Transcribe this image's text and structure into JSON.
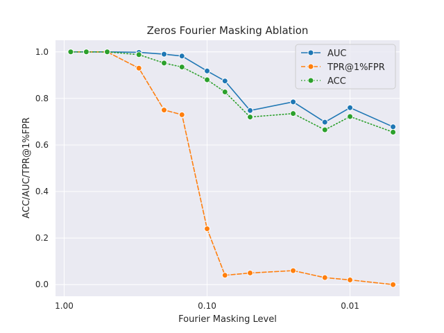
{
  "chart_data": {
    "type": "line",
    "title": "Zeros Fourier Masking Ablation",
    "xlabel": "Fourier Masking Level",
    "ylabel": "ACC/AUC/TPR@1%FPR",
    "x_scale": "log",
    "x_reversed": true,
    "xlim": [
      1.15,
      0.0045
    ],
    "ylim": [
      -0.05,
      1.05
    ],
    "x_ticks": [
      {
        "value": 1.0,
        "label": "1.00"
      },
      {
        "value": 0.1,
        "label": "0.10"
      },
      {
        "value": 0.01,
        "label": "0.01"
      }
    ],
    "y_ticks": [
      {
        "value": 0.0,
        "label": "0.0"
      },
      {
        "value": 0.2,
        "label": "0.2"
      },
      {
        "value": 0.4,
        "label": "0.4"
      },
      {
        "value": 0.6,
        "label": "0.6"
      },
      {
        "value": 0.8,
        "label": "0.8"
      },
      {
        "value": 1.0,
        "label": "1.0"
      }
    ],
    "grid": true,
    "legend_position": "top-right",
    "x": [
      0.9,
      0.7,
      0.5,
      0.3,
      0.2,
      0.15,
      0.1,
      0.075,
      0.05,
      0.025,
      0.015,
      0.01,
      0.005
    ],
    "series": [
      {
        "name": "AUC",
        "color": "#1f77b4",
        "style": "solid",
        "values": [
          1.0,
          1.0,
          1.0,
          0.998,
          0.99,
          0.982,
          0.918,
          0.875,
          0.748,
          0.785,
          0.698,
          0.76,
          0.678
        ]
      },
      {
        "name": "TPR@1%FPR",
        "color": "#ff7f0e",
        "style": "dashed",
        "values": [
          1.0,
          1.0,
          1.0,
          0.93,
          0.75,
          0.73,
          0.24,
          0.04,
          0.05,
          0.06,
          0.03,
          0.02,
          0.0
        ]
      },
      {
        "name": "ACC",
        "color": "#2ca02c",
        "style": "dotted",
        "values": [
          1.0,
          1.0,
          1.0,
          0.988,
          0.952,
          0.935,
          0.88,
          0.828,
          0.72,
          0.735,
          0.665,
          0.722,
          0.655
        ]
      }
    ]
  }
}
